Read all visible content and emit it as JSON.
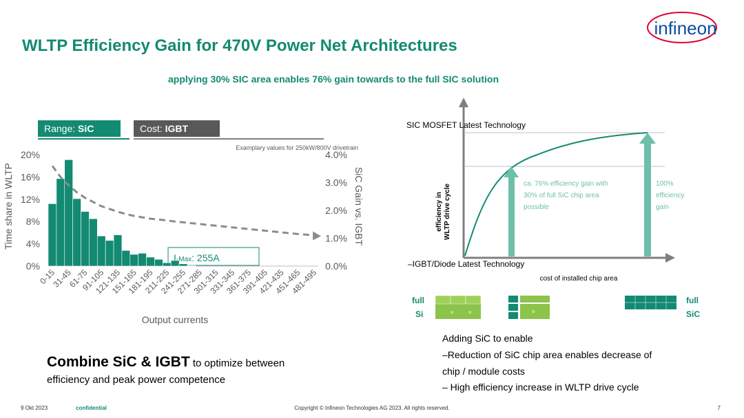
{
  "header": {
    "title": "WLTP Efficiency Gain for 470V Power Net Architectures",
    "subtitle": "applying 30% SIC area enables 76% gain towards to the full SIC solution",
    "logo": "infineon"
  },
  "tabs": [
    {
      "label": "Range: ",
      "value": "SiC"
    },
    {
      "label": "Cost: ",
      "value": "IGBT"
    }
  ],
  "chart_data": {
    "type": "bar",
    "note": "Examplary values for 250kW/800V drivetrain",
    "x_label": "Output currents",
    "y_label": "Time share in WLTP",
    "y2_label": "SiC Gain vs. IGBT",
    "categories": [
      "0-15",
      null,
      "31-45",
      null,
      "61-75",
      null,
      "91-105",
      null,
      "121-135",
      null,
      "151-165",
      null,
      "181-195",
      null,
      "211-225",
      null,
      "241-255",
      null,
      "271-285",
      null,
      "301-315",
      null,
      "331-345",
      null,
      "361-375",
      null,
      "391-405",
      null,
      "421-435",
      null,
      "451-465",
      null,
      "481-495"
    ],
    "series": [
      {
        "type": "bar",
        "color": "#138a72",
        "values": [
          11.2,
          15.7,
          19.1,
          12.1,
          9.8,
          8.5,
          5.4,
          4.6,
          5.6,
          2.8,
          2.1,
          2.3,
          1.6,
          1.2,
          0.6,
          1.0,
          0.4,
          0.1,
          0,
          0,
          0,
          0,
          0,
          0,
          0,
          0,
          0,
          0,
          0,
          0,
          0,
          0,
          0
        ]
      },
      {
        "type": "line",
        "axis": "y2",
        "dashed": true,
        "color": "#8c8c8c",
        "values": [
          3.6,
          3.2,
          2.9,
          2.65,
          2.45,
          2.3,
          2.15,
          2.05,
          1.95,
          1.87,
          1.8,
          1.75,
          1.7,
          1.67,
          1.64,
          1.6,
          1.57,
          1.54,
          1.51,
          1.48,
          1.45,
          1.42,
          1.39,
          1.36,
          1.33,
          1.3,
          1.27,
          1.24,
          1.21,
          1.18,
          1.15,
          1.13,
          1.1
        ]
      }
    ],
    "annotation": {
      "prefix": "I",
      "sub": "-Max",
      "text": ": 255A"
    },
    "ylim": [
      0,
      20
    ],
    "yticks": [
      {
        "value": 0,
        "label": "0%"
      },
      {
        "value": 4,
        "label": "4%"
      },
      {
        "value": 8,
        "label": "8%"
      },
      {
        "value": 12,
        "label": "12%"
      },
      {
        "value": 16,
        "label": "16%"
      },
      {
        "value": 20,
        "label": "20%"
      }
    ],
    "y2lim": [
      0,
      4
    ],
    "y2ticks": [
      {
        "value": 0,
        "label": "0.0%"
      },
      {
        "value": 1,
        "label": "1.0%"
      },
      {
        "value": 2,
        "label": "2.0%"
      },
      {
        "value": 3,
        "label": "3.0%"
      },
      {
        "value": 4,
        "label": "4.0%"
      }
    ]
  },
  "diagram": {
    "top_label": "SIC MOSFET Latest Technology",
    "bottom_label": "–IGBT/Diode Latest Technology",
    "x_label": "cost of installed chip area",
    "y_label": [
      "efficiency in",
      "WLTP drive cycle"
    ],
    "note_mid": [
      "ca. 76% efficiency gain with",
      "30% of full SiC chip area",
      "possible"
    ],
    "note_full": [
      "100%",
      "efficiency",
      "gain"
    ],
    "left_chip": [
      "full",
      "Si"
    ],
    "right_chip": [
      "full",
      "SiC"
    ],
    "chip_text": "Si"
  },
  "bullets": {
    "heading": "Adding SiC to enable",
    "items": [
      "–Reduction of SiC chip area enables decrease of",
      "chip / module costs",
      "– High efficiency increase in WLTP drive cycle"
    ]
  },
  "conclusion": {
    "bold": "Combine SiC & IGBT",
    "rest": " to optimize between",
    "line2": "efficiency and peak power competence"
  },
  "footer": {
    "date": "9 Okt 2023",
    "label": "confidential",
    "copyright": "Copyright © Infineon Technologies AG 2023. All rights reserved.",
    "page": "7"
  }
}
